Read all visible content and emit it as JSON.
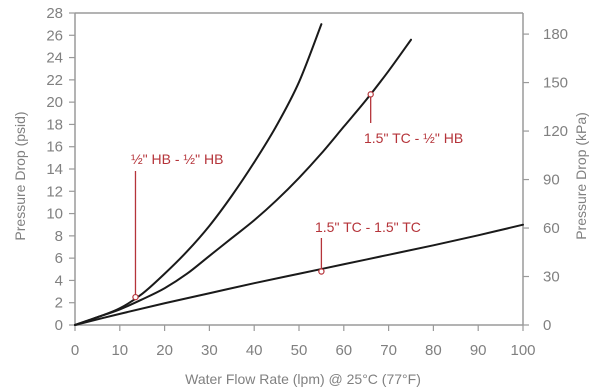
{
  "chart_data": {
    "type": "line",
    "xlabel": "Water Flow Rate (lpm) @ 25°C (77°F)",
    "ylabel": "Pressure Drop (psid)",
    "y2label": "Pressure Drop (kPa)",
    "xlim": [
      0,
      100
    ],
    "ylim": [
      0,
      28
    ],
    "y2lim": [
      0,
      193.05
    ],
    "x_ticks": [
      0,
      10,
      20,
      30,
      40,
      50,
      60,
      70,
      80,
      90,
      100
    ],
    "y_ticks": [
      0,
      2,
      4,
      6,
      8,
      10,
      12,
      14,
      16,
      18,
      20,
      22,
      24,
      26,
      28
    ],
    "y2_ticks": [
      0,
      30,
      60,
      90,
      120,
      150,
      180
    ],
    "grid": false,
    "colors": {
      "line": "#1a1a1a",
      "annotation": "#b5343a",
      "axis": "#9a9a9a",
      "text": "#808080"
    },
    "series": [
      {
        "name": "½\" HB - ½\" HB",
        "x": [
          0,
          5,
          10,
          15,
          20,
          25,
          30,
          35,
          40,
          45,
          50,
          55
        ],
        "y": [
          0,
          0.7,
          1.5,
          2.8,
          4.6,
          6.6,
          8.9,
          11.6,
          14.6,
          17.9,
          21.8,
          27.0
        ]
      },
      {
        "name": "1.5\" TC - ½\" HB",
        "x": [
          0,
          5,
          10,
          15,
          20,
          25,
          30,
          35,
          40,
          45,
          50,
          55,
          60,
          65,
          70,
          75
        ],
        "y": [
          0,
          0.7,
          1.4,
          2.3,
          3.3,
          4.6,
          6.2,
          7.8,
          9.4,
          11.2,
          13.2,
          15.4,
          17.8,
          20.2,
          22.8,
          25.6
        ]
      },
      {
        "name": "1.5\" TC - 1.5\" TC",
        "x": [
          0,
          10,
          20,
          30,
          40,
          50,
          60,
          70,
          80,
          90,
          100
        ],
        "y": [
          0,
          1.0,
          1.95,
          2.85,
          3.75,
          4.6,
          5.45,
          6.3,
          7.15,
          8.05,
          9.0
        ]
      }
    ],
    "annotations": [
      {
        "text": "½\" HB - ½\" HB",
        "point": [
          13.5,
          2.5
        ]
      },
      {
        "text": "1.5\" TC - ½\" HB",
        "point": [
          66,
          20.7
        ]
      },
      {
        "text": "1.5\" TC - 1.5\" TC",
        "point": [
          55,
          4.8
        ]
      }
    ]
  }
}
